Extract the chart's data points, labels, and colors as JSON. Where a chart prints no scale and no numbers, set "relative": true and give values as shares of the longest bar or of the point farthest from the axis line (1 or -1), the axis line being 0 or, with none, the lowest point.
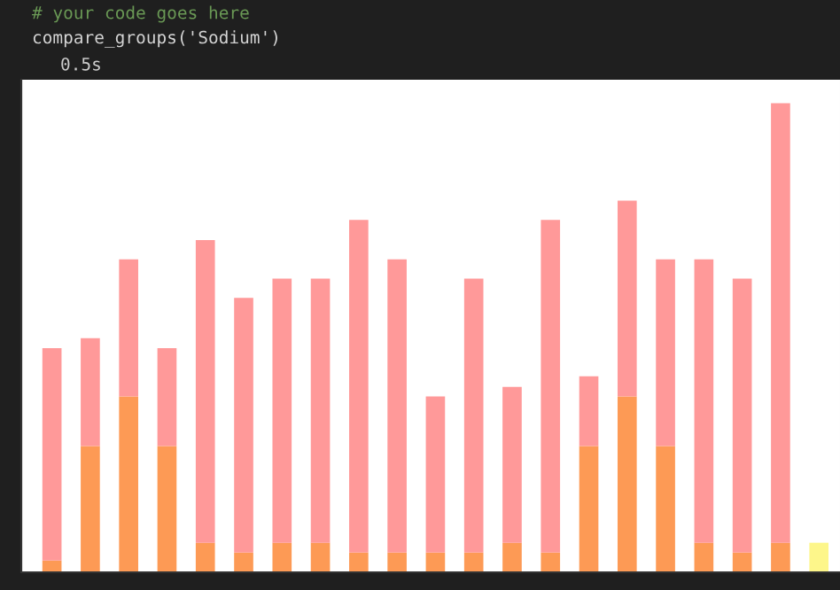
{
  "chart_data": {
    "type": "bar",
    "relative": true,
    "stacked": true,
    "categories": [
      null,
      null,
      null,
      null,
      null,
      null,
      null,
      null,
      null,
      null,
      null,
      null,
      null,
      null,
      null,
      null,
      null,
      null,
      null,
      null,
      null
    ],
    "series": [
      {
        "colors": [
          "#fd9a55",
          "#fd9a55",
          "#fd9a55",
          "#fd9a55",
          "#fd9a55",
          "#fd9a55",
          "#fd9a55",
          "#fd9a55",
          "#fd9a55",
          "#fd9a55",
          "#fd9a55",
          "#fd9a55",
          "#fd9a55",
          "#fd9a55",
          "#fd9a55",
          "#fd9a55",
          "#fd9a55",
          "#fd9a55",
          "#fd9a55",
          "#fd9a55",
          "#fdf68a"
        ],
        "values": [
          0.025,
          0.269,
          0.375,
          0.269,
          0.063,
          0.042,
          0.063,
          0.063,
          0.042,
          0.042,
          0.042,
          0.042,
          0.063,
          0.042,
          0.269,
          0.375,
          0.269,
          0.063,
          0.042,
          0.063,
          0.063
        ]
      },
      {
        "color": "#ff9999",
        "values": [
          0.453,
          0.23,
          0.292,
          0.209,
          0.645,
          0.543,
          0.563,
          0.563,
          0.709,
          0.625,
          0.333,
          0.584,
          0.332,
          0.709,
          0.149,
          0.417,
          0.398,
          0.604,
          0.584,
          0.937,
          0
        ]
      }
    ],
    "annotations": [
      "# your code goes here",
      "compare_groups('Sodium')",
      "0.5s"
    ]
  }
}
